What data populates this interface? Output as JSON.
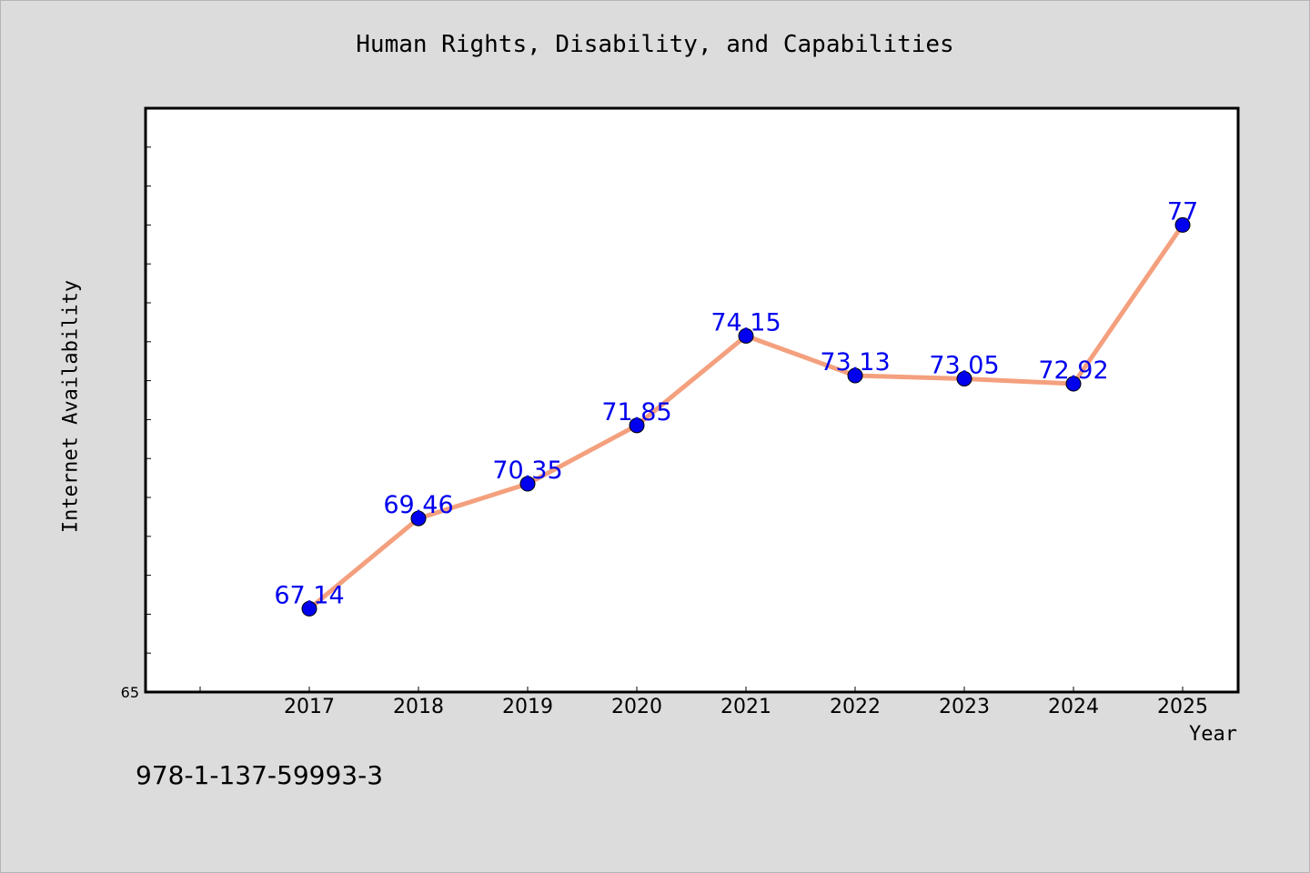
{
  "chart_data": {
    "type": "line",
    "title": "Human Rights, Disability, and Capabilities",
    "xlabel": "Year",
    "ylabel": "Internet Availability",
    "categories": [
      "2017",
      "2018",
      "2019",
      "2020",
      "2021",
      "2022",
      "2023",
      "2024",
      "2025"
    ],
    "series": [
      {
        "values": [
          67.14,
          69.46,
          70.35,
          71.85,
          74.15,
          73.13,
          73.05,
          72.92,
          77
        ],
        "labels": [
          "67.14",
          "69.46",
          "70.35",
          "71.85",
          "74.15",
          "73.13",
          "73.05",
          "72.92",
          "77"
        ]
      }
    ],
    "ylim": [
      65,
      80
    ],
    "y_tick_labels": [
      {
        "value": 65,
        "label": "65"
      }
    ],
    "y_minor_step": 1,
    "grid": false,
    "line_color": "#f4a07e",
    "marker_color": "#0000ee",
    "label_color": "#0000ee"
  },
  "footer": {
    "isbn": "978-1-137-59993-3"
  }
}
